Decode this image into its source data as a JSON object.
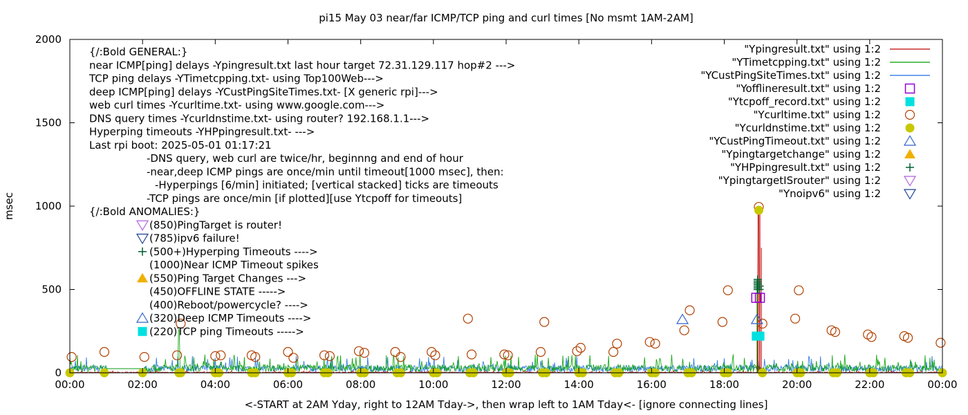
{
  "chart_data": {
    "type": "line",
    "title": "pi15 May 03  near/far ICMP/TCP ping and curl times [No msmt 1AM-2AM]",
    "xlabel": "<-START at 2AM Yday, right to 12AM Tday->, then wrap left to 1AM Tday<- [ignore connecting lines]",
    "ylabel": "msec",
    "xlim": [
      0,
      24
    ],
    "ylim": [
      0,
      2000
    ],
    "x_ticks": [
      "00:00",
      "02:00",
      "04:00",
      "06:00",
      "08:00",
      "10:00",
      "12:00",
      "14:00",
      "16:00",
      "18:00",
      "20:00",
      "22:00",
      "00:00"
    ],
    "y_ticks": [
      "0",
      "500",
      "1000",
      "1500",
      "2000"
    ],
    "grid": false,
    "legend_position": "top-right",
    "legend": [
      {
        "label": "\"Ypingresult.txt\" using 1:2",
        "marker": "line",
        "color": "#c00000"
      },
      {
        "label": "\"YTimetcpping.txt\" using 1:2",
        "marker": "line",
        "color": "#009e00"
      },
      {
        "label": "\"YCustPingSiteTimes.txt\" using 1:2",
        "marker": "line",
        "color": "#1f6fe0"
      },
      {
        "label": "\"Yofflineresult.txt\" using 1:2",
        "marker": "open-square",
        "color": "#9400d3"
      },
      {
        "label": "\"Ytcpoff_record.txt\" using 1:2",
        "marker": "filled-square",
        "color": "#00e0e0"
      },
      {
        "label": "\"Ycurltime.txt\" using 1:2",
        "marker": "open-circle",
        "color": "#b04000"
      },
      {
        "label": "\"Ycurldnstime.txt\" using 1:2",
        "marker": "filled-circle",
        "color": "#c8c800"
      },
      {
        "label": "\"YCustPingTimeout.txt\" using 1:2",
        "marker": "open-triangle-up",
        "color": "#3060d0"
      },
      {
        "label": "\"Ypingtargetchange\" using 1:2",
        "marker": "filled-triangle-up",
        "color": "#f0b000"
      },
      {
        "label": "\"YHPpingresult.txt\" using 1:2",
        "marker": "plus",
        "color": "#006030"
      },
      {
        "label": "\"YpingtargetISrouter\" using 1:2",
        "marker": "open-triangle-down",
        "color": "#b060e0"
      },
      {
        "label": "\"Ynoipv6\" using 1:2",
        "marker": "open-triangle-down",
        "color": "#1a4090"
      }
    ],
    "annotations": [
      {
        "text": "{/:Bold GENERAL:}",
        "indent": 0
      },
      {
        "text": "near ICMP[ping] delays -Ypingresult.txt last hour target 72.31.129.117 hop#2 --->",
        "indent": 0
      },
      {
        "text": "TCP ping delays -YTimetcpping.txt- using Top100Web--->",
        "indent": 0
      },
      {
        "text": "deep ICMP[ping] delays -YCustPingSiteTimes.txt- [X generic rpi]--->",
        "indent": 0
      },
      {
        "text": "web curl times -Ycurltime.txt- using www.google.com--->",
        "indent": 0
      },
      {
        "text": "DNS query times -Ycurldnstime.txt- using router? 192.168.1.1--->",
        "indent": 0
      },
      {
        "text": "Hyperping timeouts -YHPpingresult.txt- --->",
        "indent": 0
      },
      {
        "text": "Last rpi boot: 2025-05-01 01:17:21",
        "indent": 0
      },
      {
        "text": "-DNS query, web curl are twice/hr, beginnng and end of hour",
        "indent": 1
      },
      {
        "text": "-near,deep ICMP pings are once/min until timeout[1000 msec], then:",
        "indent": 1
      },
      {
        "text": "-Hyperpings [6/min] initiated; [vertical stacked] ticks are timeouts",
        "indent": 2
      },
      {
        "text": "-TCP pings are once/min [if plotted][use Ytcpoff for timeouts]",
        "indent": 1
      },
      {
        "text": "{/:Bold ANOMALIES:}",
        "indent": 0
      },
      {
        "text": "(850)PingTarget is router!",
        "indent": 3,
        "marker": "open-triangle-down",
        "color": "#b060e0"
      },
      {
        "text": "(785)ipv6 failure!",
        "indent": 3,
        "marker": "open-triangle-down",
        "color": "#1a4090"
      },
      {
        "text": "(500+)Hyperping Timeouts ---->",
        "indent": 3,
        "marker": "plus",
        "color": "#006030"
      },
      {
        "text": "(1000)Near ICMP Timeout spikes",
        "indent": 3
      },
      {
        "text": "(550)Ping Target Changes --->",
        "indent": 3,
        "marker": "filled-triangle-up",
        "color": "#f0b000"
      },
      {
        "text": "(450)OFFLINE STATE ----->",
        "indent": 3
      },
      {
        "text": "(400)Reboot/powercycle? ---->",
        "indent": 3
      },
      {
        "text": "(320)Deep ICMP Timeouts ---->",
        "indent": 3,
        "marker": "open-triangle-up",
        "color": "#3060d0"
      },
      {
        "text": "(220)TCP ping Timeouts ----->",
        "indent": 3,
        "marker": "filled-square",
        "color": "#00e0e0"
      }
    ],
    "series": [
      {
        "name": "\"Ycurltime.txt\" using 1:2",
        "marker": "open-circle",
        "color": "#b04000",
        "x": [
          0.05,
          0.95,
          2.05,
          2.95,
          3.05,
          4.0,
          4.15,
          5.0,
          5.1,
          6.0,
          6.15,
          7.0,
          7.15,
          7.95,
          8.1,
          8.95,
          9.1,
          9.95,
          10.05,
          10.95,
          11.05,
          11.95,
          12.05,
          12.95,
          13.05,
          13.95,
          14.05,
          14.95,
          15.05,
          15.95,
          16.1,
          16.9,
          17.05,
          17.95,
          18.1,
          18.95,
          19.05,
          19.95,
          20.05,
          20.95,
          21.05,
          21.95,
          22.05,
          22.95,
          23.05,
          23.95
        ],
        "y": [
          95,
          125,
          95,
          105,
          295,
          100,
          105,
          105,
          95,
          125,
          90,
          105,
          100,
          130,
          120,
          125,
          95,
          125,
          105,
          325,
          110,
          110,
          105,
          125,
          305,
          130,
          150,
          125,
          175,
          185,
          175,
          255,
          375,
          305,
          495,
          995,
          295,
          325,
          495,
          255,
          245,
          230,
          215,
          220,
          210,
          180
        ]
      },
      {
        "name": "\"Ycurldnstime.txt\" using 1:2",
        "marker": "filled-circle",
        "color": "#c8c800",
        "x": [
          0.0,
          0.95,
          2.0,
          3.0,
          3.05,
          4.0,
          4.1,
          5.0,
          5.1,
          6.0,
          6.1,
          7.0,
          7.1,
          8.0,
          8.1,
          9.0,
          9.1,
          10.0,
          10.1,
          11.0,
          11.1,
          12.0,
          12.1,
          13.0,
          13.1,
          14.0,
          14.1,
          15.0,
          15.1,
          16.0,
          16.1,
          17.0,
          17.1,
          18.0,
          18.1,
          18.95,
          19.05,
          20.0,
          20.1,
          21.0,
          21.1,
          22.0,
          22.1,
          23.0,
          23.1,
          24.0
        ],
        "y": [
          0,
          0,
          0,
          0,
          0,
          0,
          0,
          0,
          0,
          0,
          0,
          0,
          0,
          0,
          0,
          0,
          0,
          0,
          0,
          0,
          0,
          0,
          0,
          0,
          0,
          0,
          0,
          0,
          0,
          0,
          0,
          0,
          0,
          0,
          0,
          975,
          0,
          0,
          0,
          0,
          0,
          0,
          0,
          0,
          0,
          0
        ]
      },
      {
        "name": "\"Yofflineresult.txt\" using 1:2",
        "marker": "open-square",
        "color": "#9400d3",
        "x": [
          18.88,
          18.98
        ],
        "y": [
          450,
          450
        ]
      },
      {
        "name": "\"Ytcpoff_record.txt\" using 1:2",
        "marker": "filled-square",
        "color": "#00e0e0",
        "x": [
          18.88,
          18.98
        ],
        "y": [
          220,
          220
        ]
      },
      {
        "name": "\"YCustPingTimeout.txt\" using 1:2",
        "marker": "open-triangle-up",
        "color": "#3060d0",
        "x": [
          16.85,
          18.9
        ],
        "y": [
          320,
          320
        ]
      },
      {
        "name": "\"YHPpingresult.txt\" using 1:2",
        "marker": "plus",
        "color": "#006030",
        "x": [
          18.92,
          18.92,
          18.92,
          18.92,
          18.92,
          18.92,
          18.92,
          18.97,
          18.97
        ],
        "y": [
          500,
          510,
          520,
          530,
          540,
          550,
          560,
          500,
          520
        ]
      }
    ]
  }
}
